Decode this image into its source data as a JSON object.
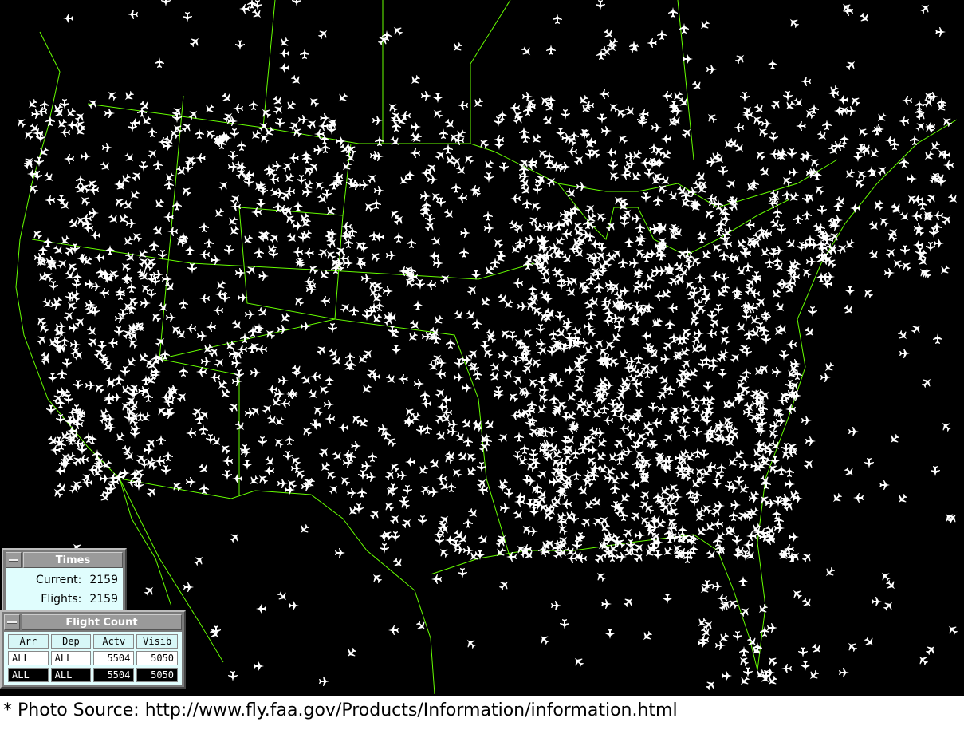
{
  "map": {
    "background": "#000000",
    "border_color": "#66ff00",
    "plane_color": "#ffffff",
    "plane_icon": "airplane-icon"
  },
  "times": {
    "title": "Times",
    "current_label": "Current:",
    "current_value": "2159",
    "flights_label": "Flights:",
    "flights_value": "2159"
  },
  "flight_count": {
    "title": "Flight Count",
    "headers": [
      "Arr",
      "Dep",
      "Actv",
      "Visib"
    ],
    "rows": [
      [
        "ALL",
        "ALL",
        "5504",
        "5050"
      ],
      [
        "ALL",
        "ALL",
        "5504",
        "5050"
      ]
    ]
  },
  "caption": "* Photo Source: http://www.fly.faa.gov/Products/Information/information.html"
}
